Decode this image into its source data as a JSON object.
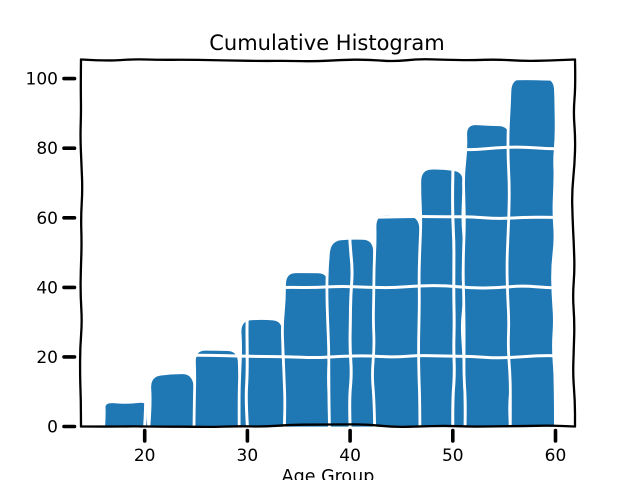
{
  "chart_data": {
    "type": "bar",
    "variant": "cumulative-histogram",
    "style": "xkcd-hand-drawn",
    "title": "Cumulative Histogram",
    "xlabel": "Age Group",
    "ylabel": "",
    "bin_edges": [
      16.0,
      20.4,
      24.8,
      29.2,
      33.6,
      38.0,
      42.4,
      46.8,
      51.2,
      55.6,
      60.0
    ],
    "cumulative_counts": [
      7,
      15,
      22,
      31,
      44,
      54,
      61,
      74,
      87,
      100
    ],
    "bin_counts": [
      7,
      8,
      7,
      9,
      13,
      10,
      7,
      13,
      13,
      13
    ],
    "x_ticks": [
      "20",
      "30",
      "40",
      "50",
      "60"
    ],
    "x_tick_values": [
      20,
      30,
      40,
      50,
      60
    ],
    "y_ticks": [
      "0",
      "20",
      "40",
      "60",
      "80",
      "100"
    ],
    "y_tick_values": [
      0,
      20,
      40,
      60,
      80,
      100
    ],
    "xlim": [
      13.8,
      61.9
    ],
    "ylim": [
      0,
      105.5
    ],
    "grid": "white gridlines drawn on top of bars at each tick",
    "legend": "none",
    "colors": {
      "bar_fill": "#1f77b4",
      "bar_edge": "#ffffff",
      "axis": "#000000",
      "text": "#000000",
      "background": "#ffffff"
    }
  }
}
